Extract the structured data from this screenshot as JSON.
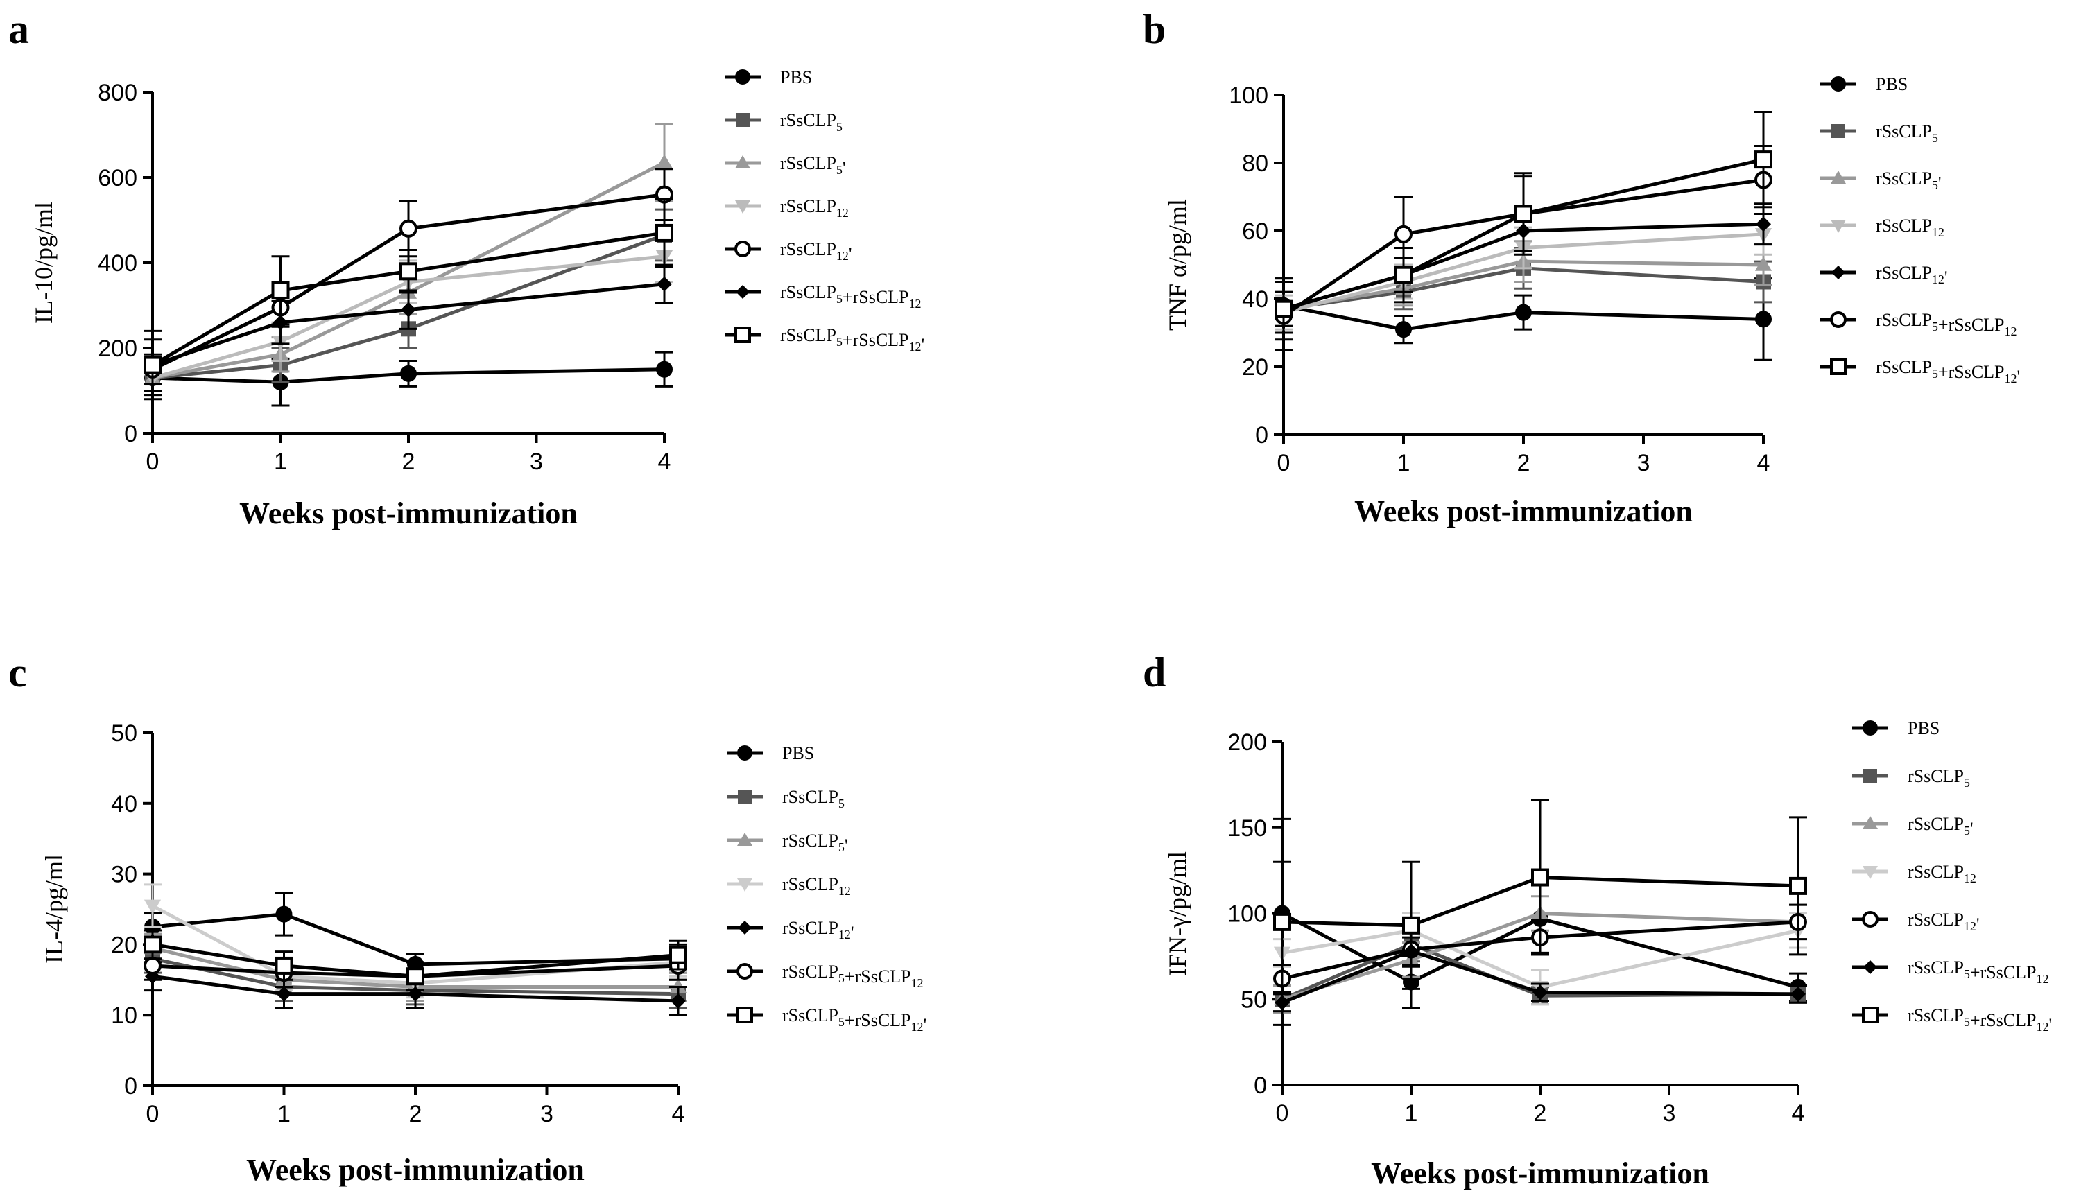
{
  "chart_data": [
    {
      "panel": "a",
      "type": "line",
      "ylabel": "IL-10/pg/ml",
      "xlabel": "Weeks post-immunization",
      "x": [
        0,
        1,
        2,
        4
      ],
      "xticks": [
        0,
        1,
        2,
        3,
        4
      ],
      "ylim": [
        0,
        800
      ],
      "yticks": [
        0,
        200,
        400,
        600,
        800
      ],
      "series": [
        {
          "name": "PBS",
          "color": "#000000",
          "marker": "circle",
          "values": [
            130,
            120,
            140,
            150
          ],
          "errors": [
            40,
            55,
            30,
            40
          ]
        },
        {
          "name": "rSsCLP5",
          "color": "#555555",
          "marker": "square",
          "values": [
            130,
            160,
            245,
            465
          ],
          "errors": [
            30,
            40,
            45,
            60
          ]
        },
        {
          "name": "rSsCLP5'",
          "color": "#999999",
          "marker": "triangle-up",
          "values": [
            130,
            185,
            330,
            635
          ],
          "errors": [
            30,
            40,
            50,
            90
          ]
        },
        {
          "name": "rSsCLP12",
          "color": "#bbbbbb",
          "marker": "triangle-down",
          "values": [
            130,
            215,
            355,
            415
          ],
          "errors": [
            30,
            45,
            50,
            60
          ]
        },
        {
          "name": "rSsCLP12'",
          "color": "#000000",
          "marker": "circle-open",
          "values": [
            150,
            295,
            480,
            560
          ],
          "errors": [
            35,
            45,
            65,
            60
          ]
        },
        {
          "name": "rSsCLP5+rSsCLP12",
          "color": "#000000",
          "marker": "diamond",
          "values": [
            160,
            260,
            290,
            350
          ],
          "errors": [
            80,
            50,
            45,
            45
          ]
        },
        {
          "name": "rSsCLP5+rSsCLP12'",
          "color": "#000000",
          "marker": "square-open",
          "values": [
            160,
            335,
            380,
            470
          ],
          "errors": [
            60,
            80,
            50,
            80
          ]
        }
      ]
    },
    {
      "panel": "b",
      "type": "line",
      "ylabel": "TNF α/pg/ml",
      "xlabel": "Weeks post-immunization",
      "x": [
        0,
        1,
        2,
        4
      ],
      "xticks": [
        0,
        1,
        2,
        3,
        4
      ],
      "ylim": [
        0,
        100
      ],
      "yticks": [
        0,
        20,
        40,
        60,
        80,
        100
      ],
      "series": [
        {
          "name": "PBS",
          "color": "#000000",
          "marker": "circle",
          "values": [
            38,
            31,
            36,
            34
          ],
          "errors": [
            8,
            4,
            5,
            12
          ]
        },
        {
          "name": "rSsCLP5",
          "color": "#555555",
          "marker": "square",
          "values": [
            37,
            42,
            49,
            45
          ],
          "errors": [
            5,
            5,
            6,
            6
          ]
        },
        {
          "name": "rSsCLP5'",
          "color": "#999999",
          "marker": "triangle-up",
          "values": [
            37,
            43,
            51,
            50
          ],
          "errors": [
            5,
            5,
            6,
            6
          ]
        },
        {
          "name": "rSsCLP12",
          "color": "#bbbbbb",
          "marker": "triangle-down",
          "values": [
            36,
            45,
            55,
            59
          ],
          "errors": [
            5,
            5,
            6,
            6
          ]
        },
        {
          "name": "rSsCLP12'",
          "color": "#000000",
          "marker": "diamond",
          "values": [
            37,
            47,
            60,
            62
          ],
          "errors": [
            5,
            5,
            6,
            6
          ]
        },
        {
          "name": "rSsCLP5+rSsCLP12",
          "color": "#000000",
          "marker": "circle-open",
          "values": [
            35,
            59,
            65,
            75
          ],
          "errors": [
            10,
            11,
            11,
            10
          ]
        },
        {
          "name": "rSsCLP5+rSsCLP12'",
          "color": "#000000",
          "marker": "square-open",
          "values": [
            37,
            47,
            65,
            81
          ],
          "errors": [
            9,
            8,
            12,
            14
          ]
        }
      ]
    },
    {
      "panel": "c",
      "type": "line",
      "ylabel": "IL-4/pg/ml",
      "xlabel": "Weeks post-immunization",
      "x": [
        0,
        1,
        2,
        4
      ],
      "xticks": [
        0,
        1,
        2,
        3,
        4
      ],
      "ylim": [
        0,
        50
      ],
      "yticks": [
        0,
        10,
        20,
        30,
        40,
        50
      ],
      "series": [
        {
          "name": "PBS",
          "color": "#000000",
          "marker": "circle",
          "values": [
            22.5,
            24.3,
            17.2,
            18.0
          ],
          "errors": [
            2,
            3,
            1.5,
            2
          ]
        },
        {
          "name": "rSsCLP5",
          "color": "#555555",
          "marker": "square",
          "values": [
            18,
            14,
            13.5,
            13
          ],
          "errors": [
            2,
            2,
            2,
            2
          ]
        },
        {
          "name": "rSsCLP5'",
          "color": "#999999",
          "marker": "triangle-up",
          "values": [
            19.5,
            15,
            14,
            14
          ],
          "errors": [
            2,
            2,
            2,
            2
          ]
        },
        {
          "name": "rSsCLP12",
          "color": "#cccccc",
          "marker": "triangle-down",
          "values": [
            25.5,
            15.5,
            14.5,
            17.5
          ],
          "errors": [
            3,
            2,
            2,
            2
          ]
        },
        {
          "name": "rSsCLP12'",
          "color": "#000000",
          "marker": "diamond",
          "values": [
            15.5,
            13,
            13,
            12
          ],
          "errors": [
            2,
            2,
            2,
            2
          ]
        },
        {
          "name": "rSsCLP5+rSsCLP12",
          "color": "#000000",
          "marker": "circle-open",
          "values": [
            17,
            16,
            15.5,
            17
          ],
          "errors": [
            2,
            2,
            2,
            2
          ]
        },
        {
          "name": "rSsCLP5+rSsCLP12'",
          "color": "#000000",
          "marker": "square-open",
          "values": [
            20,
            17,
            15.5,
            18.5
          ],
          "errors": [
            2,
            2,
            2,
            2
          ]
        }
      ]
    },
    {
      "panel": "d",
      "type": "line",
      "ylabel": "IFN-γ/pg/ml",
      "xlabel": "Weeks post-immunization",
      "x": [
        0,
        1,
        2,
        4
      ],
      "xticks": [
        0,
        1,
        2,
        3,
        4
      ],
      "ylim": [
        0,
        200
      ],
      "yticks": [
        0,
        50,
        100,
        150,
        200
      ],
      "series": [
        {
          "name": "PBS",
          "color": "#000000",
          "marker": "circle",
          "values": [
            100,
            60,
            97,
            57
          ],
          "errors": [
            30,
            15,
            20,
            8
          ]
        },
        {
          "name": "rSsCLP5",
          "color": "#555555",
          "marker": "square",
          "values": [
            50,
            82,
            52,
            53
          ],
          "errors": [
            8,
            10,
            5,
            5
          ]
        },
        {
          "name": "rSsCLP5'",
          "color": "#999999",
          "marker": "triangle-up",
          "values": [
            50,
            73,
            100,
            95
          ],
          "errors": [
            8,
            10,
            10,
            10
          ]
        },
        {
          "name": "rSsCLP12",
          "color": "#cccccc",
          "marker": "triangle-down",
          "values": [
            77,
            90,
            57,
            90
          ],
          "errors": [
            8,
            10,
            10,
            10
          ]
        },
        {
          "name": "rSsCLP12'",
          "color": "#000000",
          "marker": "circle-open",
          "values": [
            62,
            79,
            86,
            95
          ],
          "errors": [
            8,
            10,
            10,
            10
          ]
        },
        {
          "name": "rSsCLP5+rSsCLP12",
          "color": "#000000",
          "marker": "diamond",
          "values": [
            48,
            78,
            54,
            53
          ],
          "errors": [
            5,
            8,
            5,
            5
          ]
        },
        {
          "name": "rSsCLP5+rSsCLP12'",
          "color": "#000000",
          "marker": "square-open",
          "values": [
            95,
            93,
            121,
            116
          ],
          "errors": [
            60,
            37,
            45,
            40
          ]
        }
      ]
    }
  ]
}
